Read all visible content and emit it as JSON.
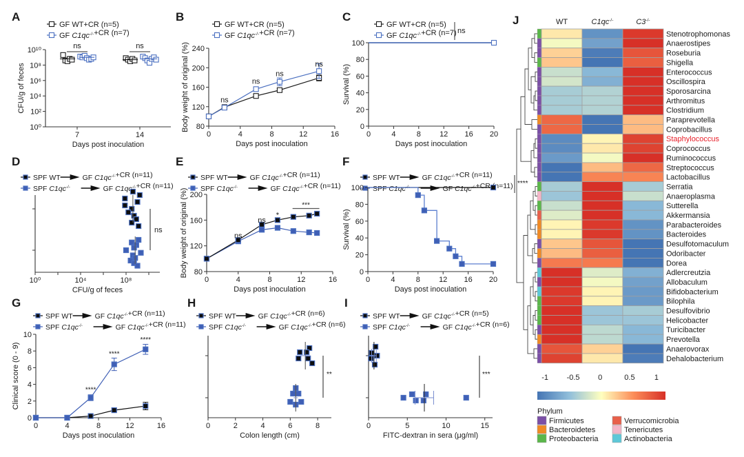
{
  "figure": {
    "colors": {
      "wt_gf": "#1a1a1a",
      "c1qc_gf": "#4a6fc0",
      "spf_wt": "#0d0d0d",
      "spf_c1qc": "#3f5fb5",
      "gray": "#555555",
      "highlight": "#e8202a"
    }
  },
  "chart_data": [
    {
      "panel": "A",
      "type": "scatter",
      "xlabel": "Days post inoculation",
      "ylabel": "CFU/g of feces",
      "yscale": "log10",
      "ylim": [
        0,
        10
      ],
      "yticks": [
        "10⁰",
        "10²",
        "10⁴",
        "10⁶",
        "10⁸",
        "10¹⁰"
      ],
      "categories": [
        "7",
        "14"
      ],
      "legend": [
        {
          "label": "GF WT+CR (n=5)"
        },
        {
          "label": "GF C1qc-/-+CR (n=7)"
        }
      ],
      "series": [
        {
          "name": "GF WT+CR",
          "values_log10": [
            [
              9.3,
              8.6,
              8.5,
              8.8,
              8.7
            ],
            [
              8.9,
              8.7,
              8.5,
              8.8,
              8.6
            ]
          ],
          "mean_log10": [
            8.8,
            8.7
          ]
        },
        {
          "name": "GF C1qc-/-+CR",
          "values_log10": [
            [
              9.1,
              9.0,
              9.2,
              8.9,
              8.7,
              8.8,
              9.0
            ],
            [
              9.1,
              8.9,
              8.6,
              8.3,
              8.8,
              9.0,
              8.7
            ]
          ],
          "mean_log10": [
            9.0,
            8.8
          ]
        }
      ],
      "annotations": [
        "ns",
        "ns"
      ]
    },
    {
      "panel": "B",
      "type": "line",
      "xlabel": "Days post inoculation",
      "ylabel": "Body weight of original (%)",
      "xlim": [
        0,
        16
      ],
      "ylim": [
        80,
        240
      ],
      "xticks": [
        0,
        4,
        8,
        12,
        16
      ],
      "yticks": [
        80,
        120,
        160,
        200,
        240
      ],
      "legend": [
        {
          "label": "GF WT+CR (n=5)"
        },
        {
          "label": "GF C1qc-/-+CR (n=7)"
        }
      ],
      "x": [
        0,
        2,
        6,
        9,
        14
      ],
      "series": [
        {
          "name": "GF WT+CR",
          "values": [
            100,
            119,
            142,
            154,
            179
          ],
          "err": [
            0,
            2,
            3,
            4,
            6
          ]
        },
        {
          "name": "GF C1qc-/-+CR",
          "values": [
            100,
            118,
            156,
            171,
            193
          ],
          "err": [
            0,
            2,
            3,
            8,
            15
          ]
        }
      ],
      "annotations": [
        "ns",
        "ns",
        "ns",
        "ns"
      ]
    },
    {
      "panel": "C",
      "type": "line",
      "xlabel": "Days post inoculation",
      "ylabel": "Survival (%)",
      "xlim": [
        0,
        20
      ],
      "ylim": [
        0,
        100
      ],
      "xticks": [
        0,
        4,
        8,
        12,
        16,
        20
      ],
      "yticks": [
        0,
        20,
        40,
        60,
        80,
        100
      ],
      "legend": [
        {
          "label": "GF WT+CR (n=5)"
        },
        {
          "label": "GF C1qc-/-+CR (n=7)"
        }
      ],
      "series": [
        {
          "name": "GF WT+CR",
          "steps": [
            [
              0,
              100
            ],
            [
              20,
              100
            ]
          ]
        },
        {
          "name": "GF C1qc-/-+CR",
          "steps": [
            [
              0,
              100
            ],
            [
              20,
              100
            ]
          ]
        }
      ],
      "annotations": [
        "ns"
      ]
    },
    {
      "panel": "D",
      "type": "scatter",
      "xlabel": "CFU/g of feces",
      "xscale": "log10",
      "xlim": [
        0,
        11
      ],
      "xticks": [
        "10⁰",
        "10⁴",
        "10⁸"
      ],
      "legend": [
        {
          "label": "SPF WT → GF C1qc-/-+CR (n=11)"
        },
        {
          "label": "SPF C1qc-/- → GF C1qc-/-+CR (n=11)"
        }
      ],
      "series": [
        {
          "name": "SPF WT",
          "values_log10": [
            8.6,
            9.2,
            7.9,
            9.0,
            7.9,
            8.5,
            8.2,
            8.7,
            8.9,
            8.5,
            9.1
          ],
          "mean_log10": 8.6
        },
        {
          "name": "SPF C1qc-/-",
          "values_log10": [
            9.1,
            8.5,
            8.9,
            8.7,
            8.0,
            9.3,
            8.6,
            8.8,
            8.4,
            8.7,
            9.0
          ],
          "mean_log10": 8.8
        }
      ],
      "annotations": [
        "ns"
      ]
    },
    {
      "panel": "E",
      "type": "line",
      "xlabel": "Days post inoculation",
      "ylabel": "Body weight of original (%)",
      "xlim": [
        0,
        16
      ],
      "ylim": [
        80,
        200
      ],
      "xticks": [
        0,
        4,
        8,
        12,
        16
      ],
      "yticks": [
        80,
        120,
        160,
        200
      ],
      "legend": [
        {
          "label": "SPF WT → GF C1qc-/-+CR (n=11)"
        },
        {
          "label": "SPF C1qc-/- → GF C1qc-/-+CR (n=11)"
        }
      ],
      "x": [
        0,
        4,
        7,
        9,
        11,
        13,
        14
      ],
      "series": [
        {
          "name": "SPF WT",
          "values": [
            100,
            129,
            153,
            160,
            165,
            167,
            170
          ]
        },
        {
          "name": "SPF C1qc-/-",
          "values": [
            100,
            127,
            145,
            148,
            143,
            141,
            140
          ]
        }
      ],
      "annotations": [
        "ns",
        "ns",
        "*",
        "***"
      ]
    },
    {
      "panel": "F",
      "type": "line",
      "xlabel": "Days post inoculation",
      "ylabel": "Survival (%)",
      "xlim": [
        0,
        20
      ],
      "ylim": [
        0,
        100
      ],
      "xticks": [
        0,
        4,
        8,
        12,
        16,
        20
      ],
      "yticks": [
        0,
        20,
        40,
        60,
        80,
        100
      ],
      "legend": [
        {
          "label": "SPF WT → GF C1qc-/-+CR (n=11)"
        },
        {
          "label": "SPF C1qc-/- → GF C1qc-/-+CR (n=11)"
        }
      ],
      "series": [
        {
          "name": "SPF WT",
          "steps": [
            [
              0,
              100
            ],
            [
              20,
              100
            ]
          ],
          "markers": [
            [
              20,
              100
            ]
          ]
        },
        {
          "name": "SPF C1qc-/-",
          "steps": [
            [
              0,
              100
            ],
            [
              8,
              90.9
            ],
            [
              9,
              72.7
            ],
            [
              11,
              36.4
            ],
            [
              13,
              27.3
            ],
            [
              14,
              18.2
            ],
            [
              15,
              9.1
            ],
            [
              20,
              9.1
            ]
          ],
          "markers": [
            [
              8,
              90.9
            ],
            [
              9,
              72.7
            ],
            [
              11,
              36.4
            ],
            [
              13,
              27.3
            ],
            [
              14,
              18.2
            ],
            [
              15,
              9.1
            ],
            [
              20,
              9.1
            ]
          ]
        }
      ],
      "annotations": [
        "****"
      ]
    },
    {
      "panel": "G",
      "type": "line",
      "xlabel": "Days post inoculation",
      "ylabel": "Clinical score (0 - 9)",
      "xlim": [
        0,
        16
      ],
      "ylim": [
        0,
        10
      ],
      "xticks": [
        0,
        4,
        8,
        12,
        16
      ],
      "yticks": [
        0,
        2,
        4,
        6,
        8,
        10
      ],
      "legend": [
        {
          "label": "SPF WT → GF C1qc-/-+CR (n=11)"
        },
        {
          "label": "SPF C1qc-/- → GF C1qc-/-+CR (n=11)"
        }
      ],
      "x": [
        0,
        4,
        7,
        10,
        14
      ],
      "series": [
        {
          "name": "SPF WT",
          "values": [
            0,
            0,
            0.2,
            0.9,
            1.4
          ],
          "err": [
            0,
            0,
            0.1,
            0.15,
            0.45
          ]
        },
        {
          "name": "SPF C1qc-/-",
          "values": [
            0,
            0,
            2.4,
            6.4,
            8.2
          ],
          "err": [
            0,
            0,
            0.35,
            0.75,
            0.6
          ]
        }
      ],
      "annotations": [
        "****",
        "****",
        "****"
      ]
    },
    {
      "panel": "H",
      "type": "scatter",
      "xlabel": "Colon length (cm)",
      "xlim": [
        0,
        9
      ],
      "xticks": [
        0,
        2,
        4,
        6,
        8
      ],
      "legend": [
        {
          "label": "SPF WT → GF C1qc-/-+CR (n=6)"
        },
        {
          "label": "SPF C1qc-/- → GF C1qc-/-+CR (n=6)"
        }
      ],
      "series": [
        {
          "name": "SPF WT",
          "values": [
            7.4,
            6.7,
            7.2,
            6.6,
            7.3,
            7.6
          ],
          "mean": 7.1,
          "sd": 0.35
        },
        {
          "name": "SPF C1qc-/-",
          "values": [
            6.4,
            6.2,
            6.6,
            6.0,
            6.8,
            6.4
          ],
          "mean": 6.4,
          "sd": 0.15
        }
      ],
      "annotations": [
        "**"
      ]
    },
    {
      "panel": "I",
      "type": "scatter",
      "xlabel": "FITC-dextran in sera (μg/ml)",
      "xlim": [
        0,
        16
      ],
      "xticks": [
        0,
        5,
        10,
        15
      ],
      "legend": [
        {
          "label": "SPF WT → GF C1qc-/-+CR (n=5)"
        },
        {
          "label": "SPF C1qc-/- → GF C1qc-/-+CR (n=6)"
        }
      ],
      "series": [
        {
          "name": "SPF WT",
          "values": [
            0.9,
            0.4,
            1.1,
            0.3,
            0.8
          ],
          "mean": 0.7,
          "sd": 0.3
        },
        {
          "name": "SPF C1qc-/-",
          "values": [
            4.5,
            5.6,
            7.4,
            6.1,
            7.1,
            12.6
          ],
          "mean": 7.2,
          "sd": 1.2
        }
      ],
      "annotations": [
        "***"
      ]
    },
    {
      "panel": "J",
      "type": "heatmap",
      "columns": [
        "WT",
        "C1qc-/-",
        "C3-/-"
      ],
      "colorbar": {
        "ticks": [
          "-1",
          "-0.5",
          "0",
          "0.5",
          "1"
        ],
        "range": [
          -1,
          1
        ]
      },
      "phylum_legend_title": "Phylum",
      "phyla": [
        {
          "name": "Firmicutes",
          "color": "#7b4fa6"
        },
        {
          "name": "Bacteroidetes",
          "color": "#f08a24"
        },
        {
          "name": "Proteobacteria",
          "color": "#5bb74a"
        },
        {
          "name": "Verrucomicrobia",
          "color": "#e8604a"
        },
        {
          "name": "Tenericutes",
          "color": "#f4b6c8"
        },
        {
          "name": "Actinobacteria",
          "color": "#5ec8d8"
        }
      ],
      "rows": [
        {
          "name": "Stenotrophomonas",
          "phylum": "Proteobacteria",
          "values": [
            0.1,
            -0.8,
            0.95
          ]
        },
        {
          "name": "Anaerostipes",
          "phylum": "Firmicutes",
          "values": [
            -0.05,
            -0.7,
            1.0
          ]
        },
        {
          "name": "Roseburia",
          "phylum": "Firmicutes",
          "values": [
            0.2,
            -0.95,
            0.8
          ]
        },
        {
          "name": "Shigella",
          "phylum": "Proteobacteria",
          "values": [
            0.25,
            -1.0,
            0.75
          ]
        },
        {
          "name": "Enterococcus",
          "phylum": "Firmicutes",
          "values": [
            -0.25,
            -0.55,
            1.0
          ]
        },
        {
          "name": "Oscillospira",
          "phylum": "Firmicutes",
          "values": [
            -0.2,
            -0.6,
            1.0
          ]
        },
        {
          "name": "Sporosarcina",
          "phylum": "Firmicutes",
          "values": [
            -0.4,
            -0.35,
            1.0
          ]
        },
        {
          "name": "Arthromitus",
          "phylum": "Firmicutes",
          "values": [
            -0.4,
            -0.35,
            1.0
          ]
        },
        {
          "name": "Clostridium",
          "phylum": "Firmicutes",
          "values": [
            -0.4,
            -0.35,
            1.0
          ]
        },
        {
          "name": "Paraprevotella",
          "phylum": "Bacteroidetes",
          "values": [
            0.7,
            -1.0,
            0.3
          ]
        },
        {
          "name": "Coprobacillus",
          "phylum": "Firmicutes",
          "values": [
            0.7,
            -1.0,
            0.3
          ]
        },
        {
          "name": "Staphylococcus",
          "phylum": "Firmicutes",
          "values": [
            -0.85,
            0.05,
            0.9
          ],
          "highlight": true
        },
        {
          "name": "Coprococcus",
          "phylum": "Firmicutes",
          "values": [
            -0.85,
            0.1,
            0.9
          ]
        },
        {
          "name": "Ruminococcus",
          "phylum": "Firmicutes",
          "values": [
            -0.75,
            -0.05,
            1.0
          ]
        },
        {
          "name": "Streptococcus",
          "phylum": "Firmicutes",
          "values": [
            -1.0,
            0.3,
            0.7
          ]
        },
        {
          "name": "Lactobacillus",
          "phylum": "Firmicutes",
          "values": [
            -1.0,
            0.55,
            0.55
          ]
        },
        {
          "name": "Serratia",
          "phylum": "Proteobacteria",
          "values": [
            -0.4,
            1.0,
            -0.4
          ]
        },
        {
          "name": "Anaeroplasma",
          "phylum": "Tenericutes",
          "values": [
            -0.45,
            1.0,
            -0.25
          ]
        },
        {
          "name": "Sutterella",
          "phylum": "Proteobacteria",
          "values": [
            -0.25,
            1.0,
            -0.55
          ]
        },
        {
          "name": "Akkermansia",
          "phylum": "Verrucomicrobia",
          "values": [
            -0.15,
            1.0,
            -0.55
          ]
        },
        {
          "name": "Parabacteroides",
          "phylum": "Bacteroidetes",
          "values": [
            0.05,
            0.95,
            -0.8
          ]
        },
        {
          "name": "Bacteroides",
          "phylum": "Bacteroidetes",
          "values": [
            0.05,
            0.95,
            -0.8
          ]
        },
        {
          "name": "Desulfotomaculum",
          "phylum": "Firmicutes",
          "values": [
            0.25,
            0.8,
            -1.0
          ]
        },
        {
          "name": "Odoribacter",
          "phylum": "Bacteroidetes",
          "values": [
            0.3,
            0.75,
            -1.0
          ]
        },
        {
          "name": "Dorea",
          "phylum": "Firmicutes",
          "values": [
            0.6,
            0.6,
            -1.0
          ]
        },
        {
          "name": "Adlercreutzia",
          "phylum": "Actinobacteria",
          "values": [
            1.0,
            -0.15,
            -0.6
          ]
        },
        {
          "name": "Allobaculum",
          "phylum": "Firmicutes",
          "values": [
            1.0,
            -0.05,
            -0.7
          ]
        },
        {
          "name": "Bifidobacterium",
          "phylum": "Actinobacteria",
          "values": [
            0.95,
            0.05,
            -0.75
          ]
        },
        {
          "name": "Bilophila",
          "phylum": "Proteobacteria",
          "values": [
            0.95,
            0.05,
            -0.75
          ]
        },
        {
          "name": "Desulfovibrio",
          "phylum": "Proteobacteria",
          "values": [
            1.0,
            -0.45,
            -0.4
          ]
        },
        {
          "name": "Helicobacter",
          "phylum": "Proteobacteria",
          "values": [
            1.0,
            -0.45,
            -0.45
          ]
        },
        {
          "name": "Turicibacter",
          "phylum": "Firmicutes",
          "values": [
            1.0,
            -0.3,
            -0.55
          ]
        },
        {
          "name": "Prevotella",
          "phylum": "Bacteroidetes",
          "values": [
            1.0,
            -0.3,
            -0.55
          ]
        },
        {
          "name": "Anaerovorax",
          "phylum": "Firmicutes",
          "values": [
            0.8,
            0.2,
            -1.0
          ]
        },
        {
          "name": "Dehalobacterium",
          "phylum": "Firmicutes",
          "values": [
            0.9,
            0.1,
            -0.95
          ]
        }
      ]
    }
  ]
}
